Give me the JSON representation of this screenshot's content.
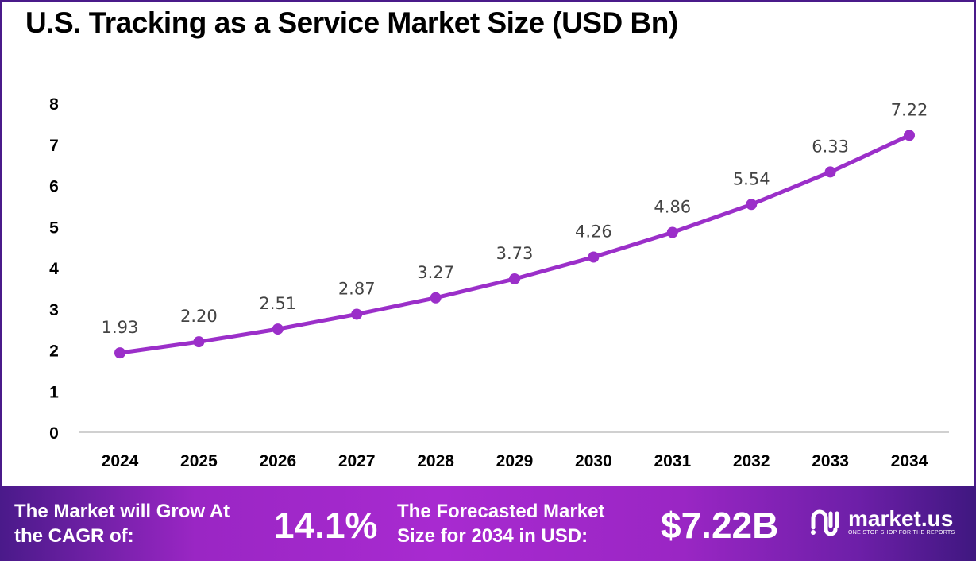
{
  "chart_data": {
    "type": "line",
    "title": "U.S. Tracking as a Service Market Size (USD Bn)",
    "categories": [
      "2024",
      "2025",
      "2026",
      "2027",
      "2028",
      "2029",
      "2030",
      "2031",
      "2032",
      "2033",
      "2034"
    ],
    "values": [
      1.93,
      2.2,
      2.51,
      2.87,
      3.27,
      3.73,
      4.26,
      4.86,
      5.54,
      6.33,
      7.22
    ],
    "data_labels": [
      "1.93",
      "2.20",
      "2.51",
      "2.87",
      "3.27",
      "3.73",
      "4.26",
      "4.86",
      "5.54",
      "6.33",
      "7.22"
    ],
    "yticks": [
      "0",
      "1",
      "2",
      "3",
      "4",
      "5",
      "6",
      "7",
      "8"
    ],
    "ylim": [
      0,
      8
    ],
    "grid": false,
    "line_color": "#9b2fc9"
  },
  "banner": {
    "cagr_label": "The Market will Grow At the CAGR of:",
    "cagr_value": "14.1%",
    "forecast_label": "The Forecasted Market Size for 2034 in USD:",
    "forecast_value": "$7.22B",
    "logo_name": "market.us",
    "logo_tagline": "ONE STOP SHOP FOR THE REPORTS"
  }
}
